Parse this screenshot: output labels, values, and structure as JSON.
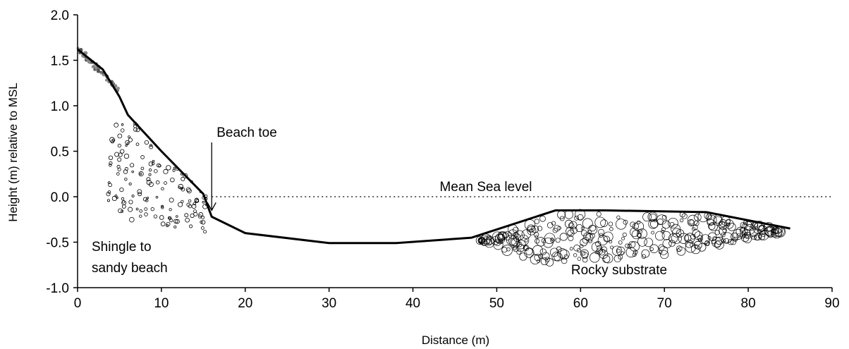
{
  "chart_data": {
    "type": "line",
    "title": "",
    "xlabel": "Distance (m)",
    "ylabel": "Height (m) relative to MSL",
    "xlim": [
      0,
      90
    ],
    "ylim": [
      -1.0,
      2.0
    ],
    "x_ticks": [
      "0",
      "10",
      "20",
      "30",
      "40",
      "50",
      "60",
      "70",
      "80",
      "90"
    ],
    "y_ticks": [
      "2.0",
      "1.5",
      "1.0",
      "0.5",
      "0.0",
      "-0.5",
      "-1.0"
    ],
    "grid": false,
    "series": [
      {
        "x": [
          0,
          3,
          5,
          6,
          10,
          15,
          16,
          20,
          30,
          38,
          47,
          57,
          63,
          75,
          85
        ],
        "y": [
          1.62,
          1.4,
          1.1,
          0.9,
          0.5,
          0.03,
          -0.22,
          -0.4,
          -0.51,
          -0.51,
          -0.45,
          -0.15,
          -0.15,
          -0.17,
          -0.35
        ],
        "color": "#000000"
      }
    ],
    "reference_line": {
      "y": 0.0,
      "style": "dotted",
      "label": "Mean Sea level"
    },
    "annotations": {
      "beach_toe": {
        "text": "Beach toe",
        "x": 16,
        "y": -0.15
      },
      "shingle_line1": "Shingle to",
      "shingle_line2": "sandy beach",
      "rocky": "Rocky substrate"
    }
  }
}
